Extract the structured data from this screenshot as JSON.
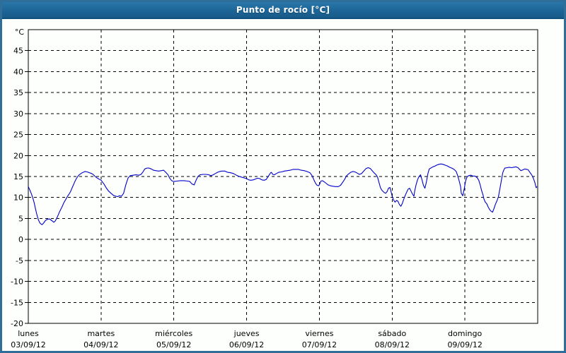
{
  "window": {
    "title": "Punto de rocío [°C]"
  },
  "chart_data": {
    "type": "line",
    "title": "Punto de rocío [°C]",
    "ylabel": "°C",
    "unit_label": "°C",
    "ylim": [
      -20,
      50
    ],
    "y_ticks": [
      45,
      40,
      35,
      30,
      25,
      20,
      15,
      10,
      5,
      0,
      -5,
      -10,
      -15,
      -20
    ],
    "x_range_days": [
      0,
      7
    ],
    "grid": "dashed",
    "legend_position": "none",
    "line_color": "#0000c8",
    "axis_color": "#000000",
    "x_days": [
      {
        "name": "lunes",
        "date": "03/09/12"
      },
      {
        "name": "martes",
        "date": "04/09/12"
      },
      {
        "name": "miércoles",
        "date": "05/09/12"
      },
      {
        "name": "jueves",
        "date": "06/09/12"
      },
      {
        "name": "viernes",
        "date": "07/09/12"
      },
      {
        "name": "sábado",
        "date": "08/09/12"
      },
      {
        "name": "domingo",
        "date": "09/09/12"
      }
    ],
    "x_gridline_day_indices": [
      1,
      2,
      3,
      4,
      5,
      6
    ],
    "series": [
      {
        "name": "Punto de rocío",
        "units": "°C",
        "points": [
          [
            0.0,
            12.6
          ],
          [
            0.02,
            11.8
          ],
          [
            0.04,
            11.0
          ],
          [
            0.06,
            10.0
          ],
          [
            0.08,
            8.8
          ],
          [
            0.1,
            7.2
          ],
          [
            0.12,
            5.8
          ],
          [
            0.14,
            4.6
          ],
          [
            0.16,
            3.9
          ],
          [
            0.18,
            3.6
          ],
          [
            0.19,
            3.5
          ],
          [
            0.21,
            3.9
          ],
          [
            0.23,
            4.4
          ],
          [
            0.25,
            4.7
          ],
          [
            0.29,
            4.9
          ],
          [
            0.33,
            4.4
          ],
          [
            0.35,
            4.1
          ],
          [
            0.37,
            4.4
          ],
          [
            0.39,
            5.0
          ],
          [
            0.41,
            5.8
          ],
          [
            0.43,
            6.6
          ],
          [
            0.45,
            7.3
          ],
          [
            0.47,
            8.0
          ],
          [
            0.49,
            8.8
          ],
          [
            0.51,
            9.4
          ],
          [
            0.54,
            10.3
          ],
          [
            0.56,
            10.8
          ],
          [
            0.58,
            11.4
          ],
          [
            0.6,
            12.2
          ],
          [
            0.62,
            13.0
          ],
          [
            0.64,
            13.8
          ],
          [
            0.66,
            14.5
          ],
          [
            0.68,
            15.0
          ],
          [
            0.7,
            15.4
          ],
          [
            0.74,
            15.9
          ],
          [
            0.78,
            16.2
          ],
          [
            0.81,
            16.1
          ],
          [
            0.84,
            15.9
          ],
          [
            0.87,
            15.7
          ],
          [
            0.89,
            15.5
          ],
          [
            0.92,
            15.0
          ],
          [
            0.95,
            14.6
          ],
          [
            0.98,
            14.3
          ],
          [
            1.0,
            14.1
          ],
          [
            1.04,
            13.2
          ],
          [
            1.07,
            12.3
          ],
          [
            1.1,
            11.6
          ],
          [
            1.13,
            11.1
          ],
          [
            1.17,
            10.5
          ],
          [
            1.2,
            10.3
          ],
          [
            1.23,
            10.2
          ],
          [
            1.25,
            10.4
          ],
          [
            1.28,
            10.3
          ],
          [
            1.31,
            11.0
          ],
          [
            1.34,
            13.0
          ],
          [
            1.37,
            14.6
          ],
          [
            1.4,
            15.2
          ],
          [
            1.44,
            15.3
          ],
          [
            1.48,
            15.4
          ],
          [
            1.52,
            15.3
          ],
          [
            1.55,
            15.5
          ],
          [
            1.58,
            16.2
          ],
          [
            1.6,
            16.8
          ],
          [
            1.63,
            17.0
          ],
          [
            1.66,
            17.0
          ],
          [
            1.69,
            16.8
          ],
          [
            1.72,
            16.5
          ],
          [
            1.75,
            16.4
          ],
          [
            1.79,
            16.3
          ],
          [
            1.83,
            16.4
          ],
          [
            1.86,
            16.5
          ],
          [
            1.89,
            16.0
          ],
          [
            1.92,
            15.4
          ],
          [
            1.94,
            14.7
          ],
          [
            1.97,
            14.0
          ],
          [
            2.0,
            13.8
          ],
          [
            2.04,
            13.9
          ],
          [
            2.09,
            14.0
          ],
          [
            2.14,
            14.0
          ],
          [
            2.19,
            13.9
          ],
          [
            2.22,
            13.8
          ],
          [
            2.25,
            13.2
          ],
          [
            2.28,
            13.0
          ],
          [
            2.3,
            13.9
          ],
          [
            2.33,
            15.0
          ],
          [
            2.36,
            15.4
          ],
          [
            2.4,
            15.5
          ],
          [
            2.44,
            15.5
          ],
          [
            2.48,
            15.4
          ],
          [
            2.51,
            15.2
          ],
          [
            2.54,
            15.4
          ],
          [
            2.57,
            15.7
          ],
          [
            2.6,
            16.0
          ],
          [
            2.63,
            16.2
          ],
          [
            2.66,
            16.3
          ],
          [
            2.7,
            16.3
          ],
          [
            2.74,
            16.0
          ],
          [
            2.78,
            15.9
          ],
          [
            2.82,
            15.7
          ],
          [
            2.86,
            15.3
          ],
          [
            2.9,
            15.0
          ],
          [
            2.94,
            14.8
          ],
          [
            2.98,
            14.6
          ],
          [
            3.0,
            14.5
          ],
          [
            3.03,
            14.2
          ],
          [
            3.06,
            14.1
          ],
          [
            3.09,
            14.2
          ],
          [
            3.12,
            14.4
          ],
          [
            3.15,
            14.6
          ],
          [
            3.18,
            14.5
          ],
          [
            3.21,
            14.2
          ],
          [
            3.24,
            14.1
          ],
          [
            3.27,
            14.3
          ],
          [
            3.3,
            15.1
          ],
          [
            3.33,
            15.9
          ],
          [
            3.34,
            16.0
          ],
          [
            3.36,
            15.5
          ],
          [
            3.38,
            15.4
          ],
          [
            3.41,
            15.7
          ],
          [
            3.44,
            16.0
          ],
          [
            3.48,
            16.1
          ],
          [
            3.52,
            16.3
          ],
          [
            3.56,
            16.4
          ],
          [
            3.6,
            16.5
          ],
          [
            3.64,
            16.7
          ],
          [
            3.68,
            16.7
          ],
          [
            3.71,
            16.7
          ],
          [
            3.75,
            16.5
          ],
          [
            3.79,
            16.4
          ],
          [
            3.83,
            16.2
          ],
          [
            3.87,
            15.9
          ],
          [
            3.9,
            15.2
          ],
          [
            3.93,
            14.0
          ],
          [
            3.95,
            13.3
          ],
          [
            3.97,
            12.9
          ],
          [
            3.99,
            12.8
          ],
          [
            4.01,
            13.4
          ],
          [
            4.02,
            13.9
          ],
          [
            4.04,
            14.0
          ],
          [
            4.06,
            13.8
          ],
          [
            4.09,
            13.4
          ],
          [
            4.12,
            13.0
          ],
          [
            4.15,
            12.8
          ],
          [
            4.18,
            12.7
          ],
          [
            4.22,
            12.6
          ],
          [
            4.26,
            12.6
          ],
          [
            4.29,
            12.9
          ],
          [
            4.32,
            13.6
          ],
          [
            4.35,
            14.4
          ],
          [
            4.37,
            15.1
          ],
          [
            4.4,
            15.6
          ],
          [
            4.43,
            16.0
          ],
          [
            4.46,
            16.2
          ],
          [
            4.49,
            16.1
          ],
          [
            4.52,
            15.8
          ],
          [
            4.55,
            15.5
          ],
          [
            4.58,
            15.7
          ],
          [
            4.61,
            16.3
          ],
          [
            4.64,
            16.9
          ],
          [
            4.67,
            17.1
          ],
          [
            4.7,
            16.9
          ],
          [
            4.72,
            16.5
          ],
          [
            4.75,
            15.9
          ],
          [
            4.78,
            15.4
          ],
          [
            4.8,
            14.8
          ],
          [
            4.82,
            13.5
          ],
          [
            4.84,
            12.3
          ],
          [
            4.86,
            11.7
          ],
          [
            4.89,
            11.2
          ],
          [
            4.91,
            11.0
          ],
          [
            4.93,
            11.4
          ],
          [
            4.95,
            12.2
          ],
          [
            4.97,
            12.4
          ],
          [
            4.99,
            11.0
          ],
          [
            5.0,
            10.3
          ],
          [
            5.02,
            9.4
          ],
          [
            5.04,
            8.9
          ],
          [
            5.06,
            9.3
          ],
          [
            5.08,
            9.1
          ],
          [
            5.1,
            8.3
          ],
          [
            5.12,
            7.9
          ],
          [
            5.14,
            8.6
          ],
          [
            5.16,
            9.6
          ],
          [
            5.18,
            10.5
          ],
          [
            5.2,
            11.3
          ],
          [
            5.22,
            12.0
          ],
          [
            5.24,
            12.2
          ],
          [
            5.26,
            11.5
          ],
          [
            5.28,
            10.8
          ],
          [
            5.3,
            10.3
          ],
          [
            5.31,
            11.6
          ],
          [
            5.33,
            13.1
          ],
          [
            5.35,
            14.3
          ],
          [
            5.37,
            15.0
          ],
          [
            5.39,
            15.4
          ],
          [
            5.41,
            14.2
          ],
          [
            5.43,
            12.9
          ],
          [
            5.45,
            12.2
          ],
          [
            5.47,
            13.6
          ],
          [
            5.49,
            15.6
          ],
          [
            5.51,
            16.8
          ],
          [
            5.53,
            17.0
          ],
          [
            5.56,
            17.3
          ],
          [
            5.59,
            17.5
          ],
          [
            5.61,
            17.7
          ],
          [
            5.64,
            17.9
          ],
          [
            5.67,
            18.0
          ],
          [
            5.7,
            17.9
          ],
          [
            5.73,
            17.7
          ],
          [
            5.76,
            17.5
          ],
          [
            5.79,
            17.2
          ],
          [
            5.82,
            17.0
          ],
          [
            5.85,
            16.7
          ],
          [
            5.88,
            16.2
          ],
          [
            5.9,
            15.2
          ],
          [
            5.92,
            14.0
          ],
          [
            5.94,
            12.6
          ],
          [
            5.95,
            11.0
          ],
          [
            5.97,
            10.4
          ],
          [
            5.99,
            12.0
          ],
          [
            6.01,
            14.0
          ],
          [
            6.03,
            14.9
          ],
          [
            6.05,
            15.2
          ],
          [
            6.08,
            15.3
          ],
          [
            6.11,
            15.1
          ],
          [
            6.14,
            15.1
          ],
          [
            6.17,
            14.7
          ],
          [
            6.19,
            14.1
          ],
          [
            6.21,
            13.0
          ],
          [
            6.23,
            11.6
          ],
          [
            6.25,
            10.5
          ],
          [
            6.26,
            9.7
          ],
          [
            6.28,
            8.9
          ],
          [
            6.3,
            8.5
          ],
          [
            6.32,
            7.7
          ],
          [
            6.34,
            7.1
          ],
          [
            6.36,
            6.7
          ],
          [
            6.38,
            6.5
          ],
          [
            6.4,
            7.4
          ],
          [
            6.42,
            8.4
          ],
          [
            6.44,
            9.2
          ],
          [
            6.46,
            10.2
          ],
          [
            6.48,
            12.0
          ],
          [
            6.5,
            14.0
          ],
          [
            6.52,
            15.9
          ],
          [
            6.54,
            16.8
          ],
          [
            6.55,
            17.0
          ],
          [
            6.58,
            17.1
          ],
          [
            6.61,
            17.2
          ],
          [
            6.64,
            17.1
          ],
          [
            6.67,
            17.2
          ],
          [
            6.7,
            17.3
          ],
          [
            6.73,
            17.1
          ],
          [
            6.75,
            16.7
          ],
          [
            6.77,
            16.4
          ],
          [
            6.8,
            16.6
          ],
          [
            6.82,
            16.8
          ],
          [
            6.85,
            16.7
          ],
          [
            6.87,
            16.6
          ],
          [
            6.88,
            16.3
          ],
          [
            6.9,
            15.8
          ],
          [
            6.92,
            15.3
          ],
          [
            6.94,
            14.6
          ],
          [
            6.96,
            13.6
          ],
          [
            6.97,
            12.9
          ],
          [
            6.98,
            12.3
          ],
          [
            6.99,
            12.6
          ]
        ]
      }
    ]
  }
}
